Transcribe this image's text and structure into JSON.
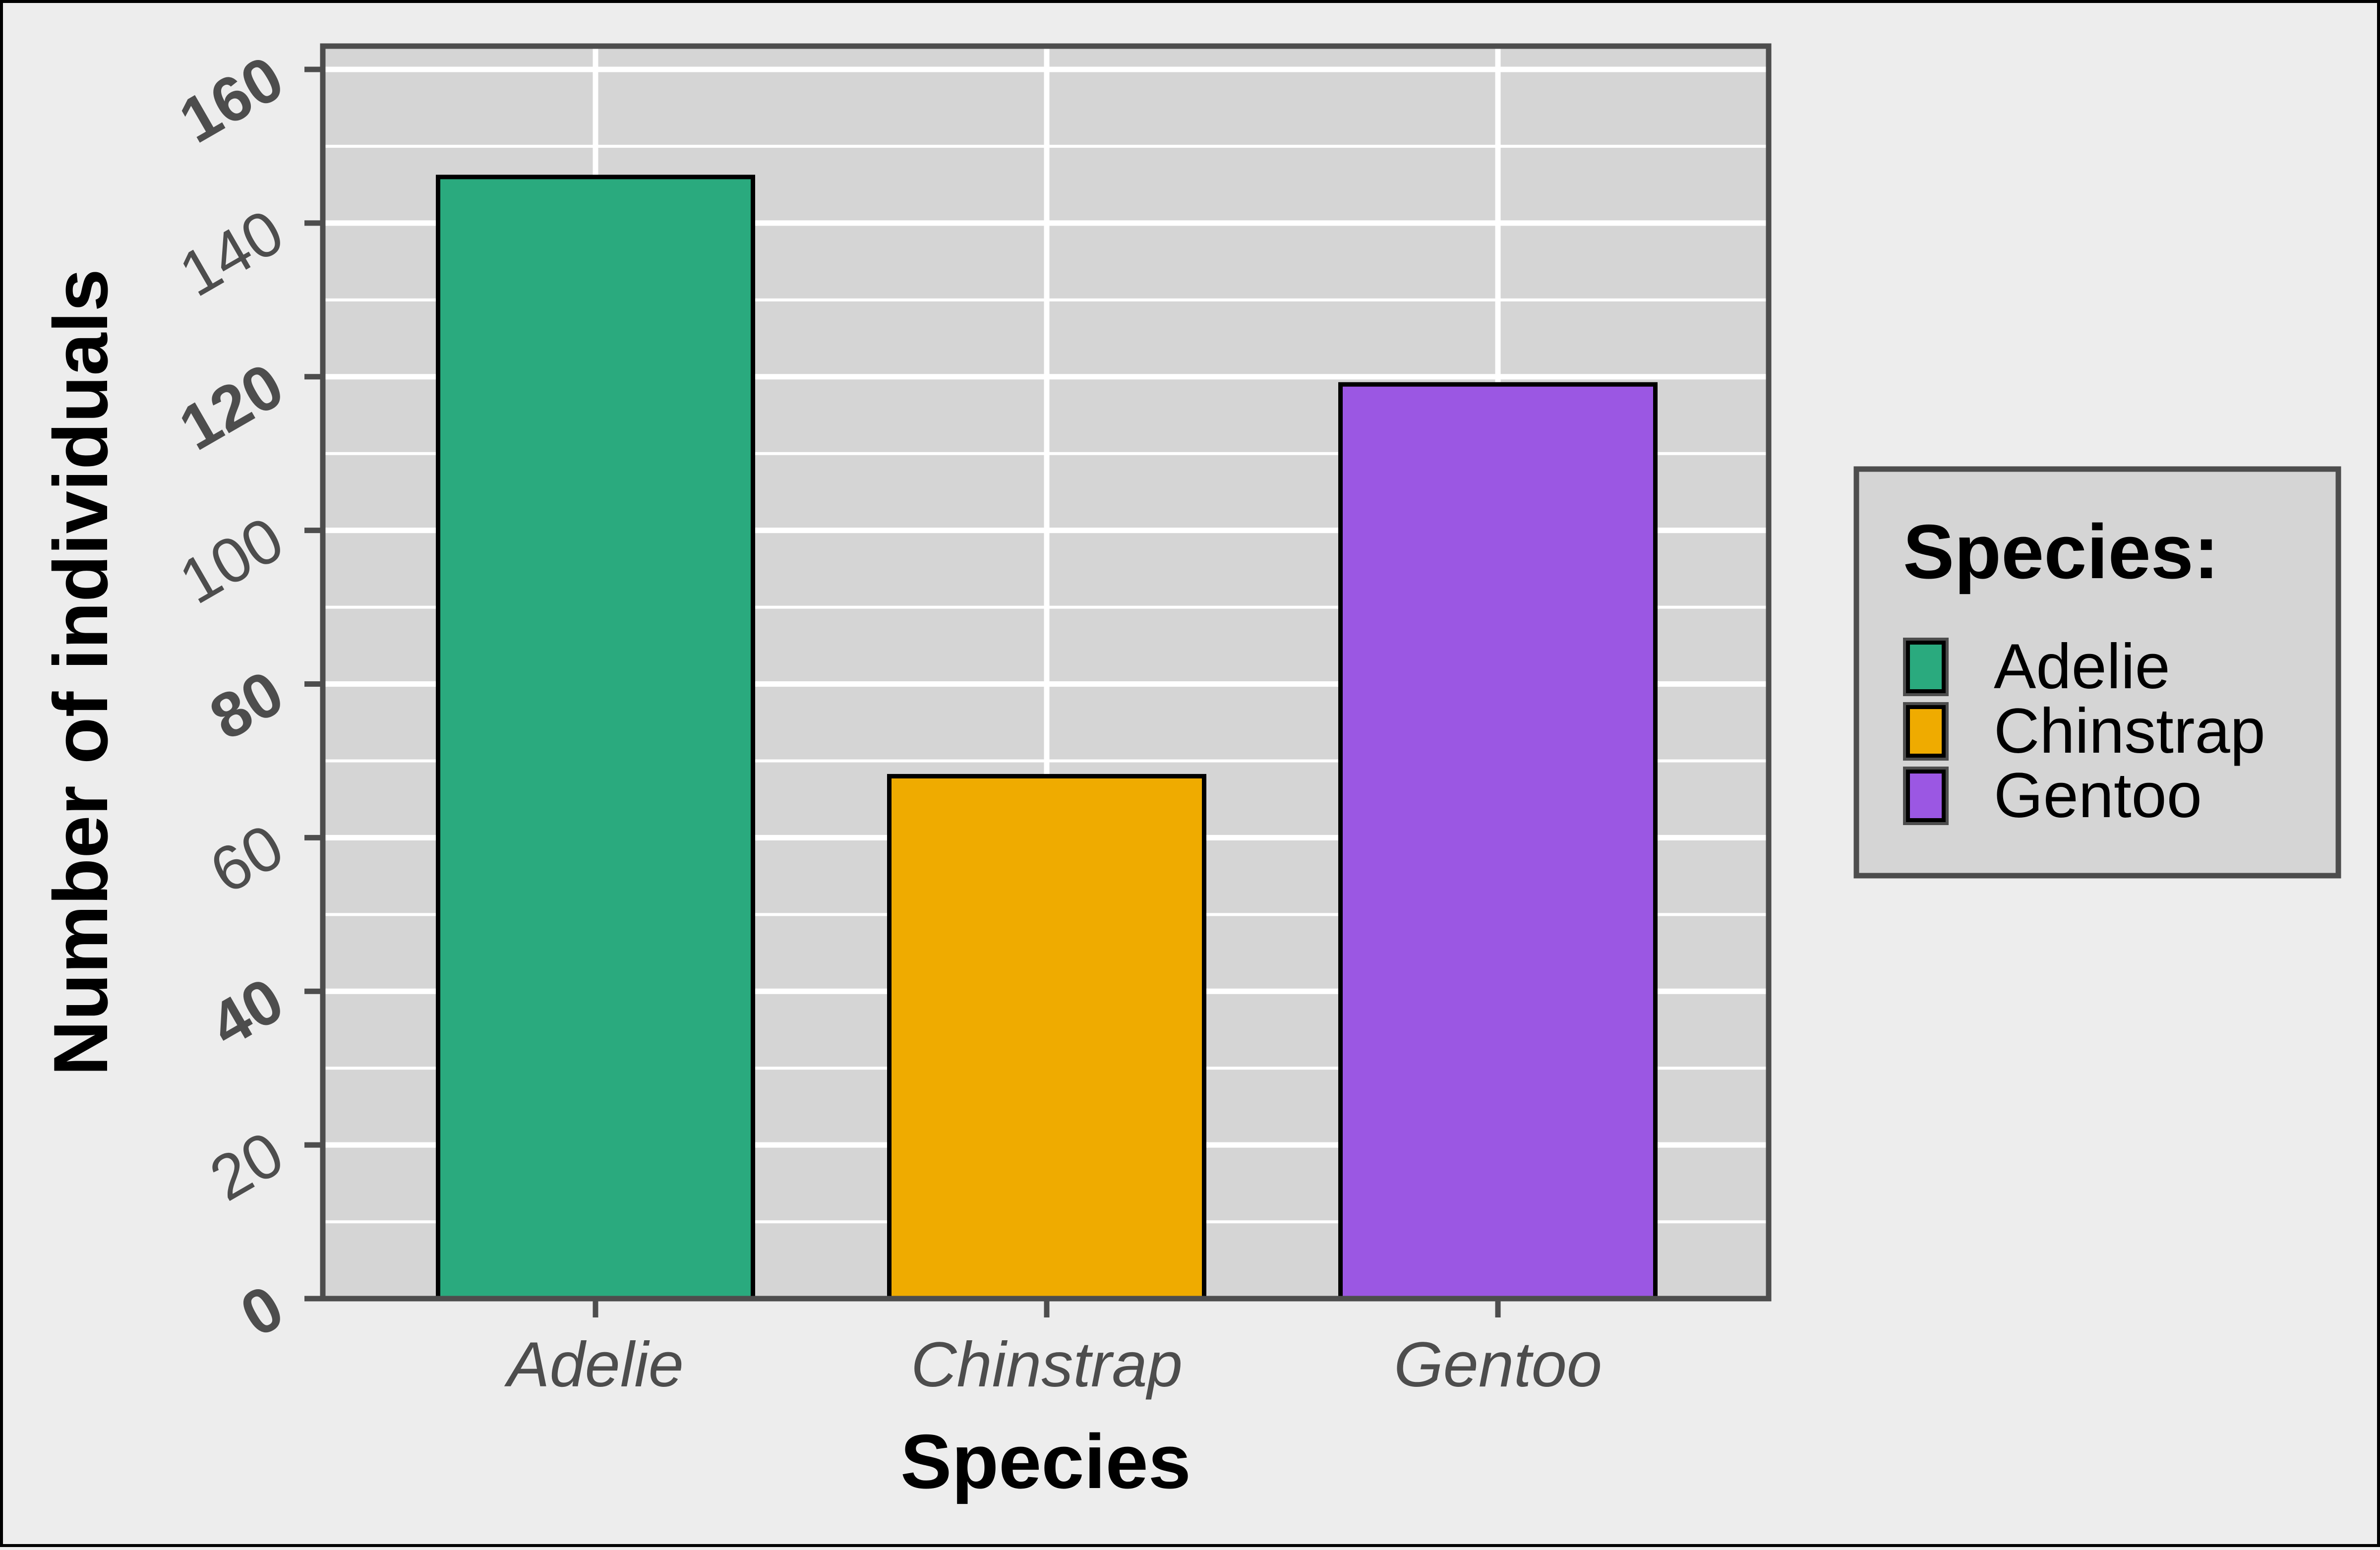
{
  "chart_data": {
    "type": "bar",
    "title": "",
    "xlabel": "Species",
    "ylabel": "Number of individuals",
    "categories": [
      "Adelie",
      "Chinstrap",
      "Gentoo"
    ],
    "values": [
      146,
      68,
      119
    ],
    "colors": [
      "#2aaa7e",
      "#efab00",
      "#9b57e3"
    ],
    "ylim": [
      0,
      160
    ],
    "yticks": [
      0,
      20,
      40,
      60,
      80,
      100,
      120,
      140,
      160
    ],
    "grid": true,
    "legend": {
      "title": "Species:",
      "placement": "right",
      "entries": [
        "Adelie",
        "Chinstrap",
        "Gentoo"
      ]
    },
    "panel_background": "#d5d5d5",
    "page_background": "#ededed"
  }
}
